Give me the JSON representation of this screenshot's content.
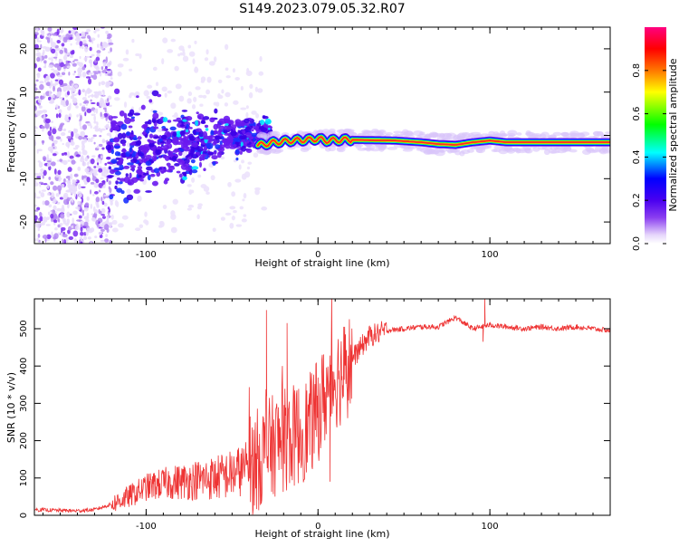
{
  "title": "S149.2023.079.05.32.R07",
  "colors": {
    "snr_line": "#ee3333",
    "ridge_core": "#ff2a2a",
    "colormap": [
      "#ffffff",
      "#e6d6fb",
      "#8a3ef0",
      "#4a00f0",
      "#0000ff",
      "#00ffff",
      "#00ff00",
      "#ffff00",
      "#ff7700",
      "#ff0000",
      "#ff0080"
    ]
  },
  "chart_data": [
    {
      "type": "heatmap",
      "panel": "spectrogram",
      "xlabel": "Height of straight line (km)",
      "ylabel": "Frequency (Hz)",
      "xlim": [
        -165,
        170
      ],
      "ylim": [
        -25,
        25
      ],
      "xticks": [
        -100,
        0,
        100
      ],
      "yticks": [
        -20,
        -10,
        0,
        10,
        20
      ],
      "ridge": {
        "x": [
          -35,
          -25,
          -15,
          -5,
          0,
          5,
          15,
          30,
          45,
          60,
          70,
          80,
          90,
          100,
          110,
          130,
          150,
          170
        ],
        "y": [
          -2.3,
          -1.6,
          -1.2,
          -1.0,
          -0.8,
          -1.2,
          -1.0,
          -1.1,
          -1.2,
          -1.6,
          -2.0,
          -2.2,
          -1.6,
          -1.2,
          -1.6,
          -1.6,
          -1.6,
          -1.6
        ]
      },
      "colorbar": {
        "label": "Normalized spectral amplitude",
        "range": [
          0,
          1
        ],
        "ticks": [
          "0.0",
          "0.2",
          "0.4",
          "0.6",
          "0.8"
        ]
      }
    },
    {
      "type": "line",
      "panel": "snr",
      "xlabel": "Height of straight line (km)",
      "ylabel": "SNR (10 * v/v)",
      "xlim": [
        -165,
        170
      ],
      "ylim": [
        0,
        580
      ],
      "xticks": [
        -100,
        0,
        100
      ],
      "yticks": [
        0,
        100,
        200,
        300,
        400,
        500
      ],
      "series": [
        {
          "x": [
            -165,
            -140,
            -130,
            -120,
            -110,
            -100,
            -90,
            -80,
            -70,
            -60,
            -50,
            -40,
            -35,
            -30,
            -25,
            -20,
            -15,
            -10,
            -5,
            0,
            5,
            10,
            15,
            20,
            25,
            30,
            40,
            50,
            60,
            70,
            80,
            90,
            95,
            100,
            110,
            120,
            130,
            140,
            150,
            160,
            170
          ],
          "y": [
            15,
            12,
            15,
            30,
            50,
            75,
            85,
            90,
            95,
            100,
            110,
            130,
            150,
            170,
            190,
            200,
            210,
            220,
            240,
            280,
            330,
            370,
            380,
            420,
            450,
            480,
            495,
            500,
            505,
            505,
            530,
            500,
            505,
            510,
            505,
            500,
            505,
            500,
            505,
            500,
            495
          ]
        }
      ],
      "spikes": [
        {
          "x": -30,
          "y": 550
        },
        {
          "x": -18,
          "y": 515
        },
        {
          "x": 7,
          "y": 90
        },
        {
          "x": 97,
          "y": 585
        },
        {
          "x": 96,
          "y": 465
        }
      ]
    }
  ]
}
